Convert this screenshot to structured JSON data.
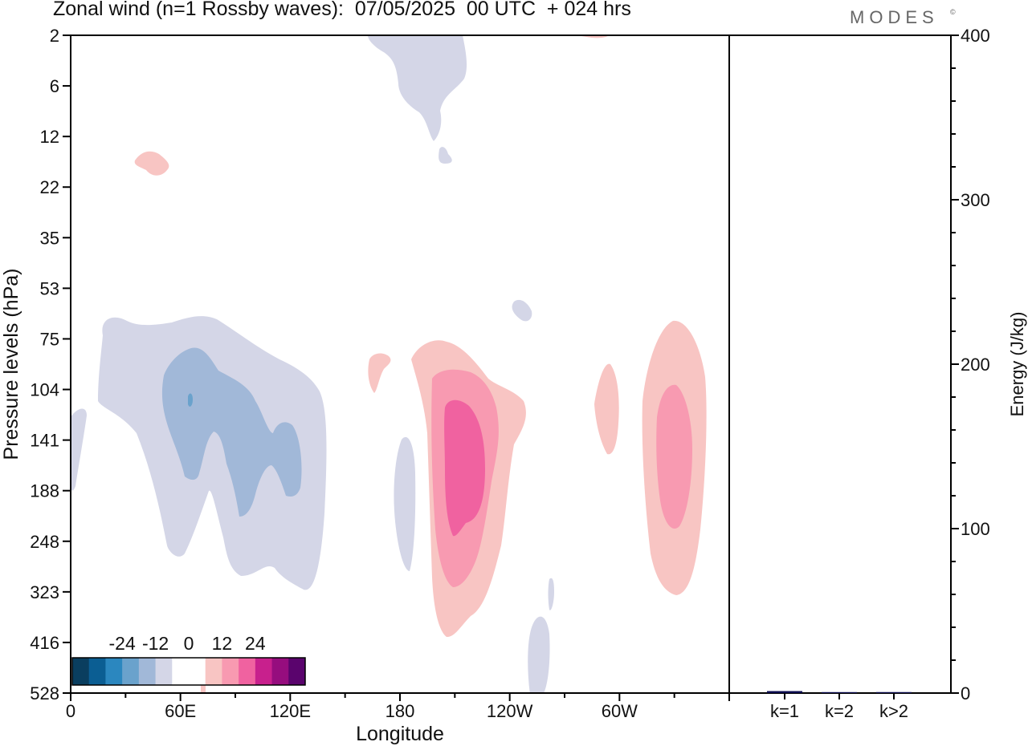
{
  "title": "Zonal wind (n=1 Rossby waves):  07/05/2025  00 UTC  + 024 hrs",
  "brand": "MODES",
  "brand_mark": "©",
  "chart_data": [
    {
      "type": "heatmap",
      "title": "Zonal wind (n=1 Rossby waves):  07/05/2025  00 UTC  + 024 hrs",
      "xlabel": "Longitude",
      "ylabel": "Pressure levels (hPa)",
      "x_ticks": [
        "0",
        "60E",
        "120E",
        "180",
        "120W",
        "60W"
      ],
      "x_tick_values": [
        0,
        60,
        120,
        180,
        240,
        300
      ],
      "xlim": [
        0,
        360
      ],
      "y_ticks": [
        2,
        6,
        12,
        22,
        35,
        53,
        75,
        104,
        141,
        188,
        248,
        323,
        416,
        528
      ],
      "y_scale": "level-index",
      "colorbar": {
        "tick_labels": [
          "-24",
          "-12",
          "0",
          "12",
          "24"
        ],
        "tick_values": [
          -24,
          -12,
          0,
          12,
          24
        ],
        "colors": [
          "#0a3e5f",
          "#0b5e93",
          "#2b87bf",
          "#6aa2cc",
          "#a1b8d8",
          "#d4d6e7",
          "#ffffff",
          "#ffffff",
          "#f8c5c3",
          "#f89ab1",
          "#f062a0",
          "#c8208d",
          "#960d7e",
          "#5a046d"
        ]
      },
      "regions": [
        {
          "value": -6,
          "color": "#d4d6e7",
          "lon": [
            10,
            125
          ],
          "p": [
            75,
            323
          ],
          "note": "negative anomaly lobe 0–120E"
        },
        {
          "value": -12,
          "color": "#a1b8d8",
          "lon": [
            40,
            105
          ],
          "p": [
            90,
            230
          ],
          "note": "core near 60–100E"
        },
        {
          "value": -18,
          "color": "#6aa2cc",
          "lon": [
            64,
            66
          ],
          "p": [
            104,
            110
          ]
        },
        {
          "value": -6,
          "color": "#d4d6e7",
          "lon": [
            0,
            8
          ],
          "p": [
            120,
            188
          ]
        },
        {
          "value": -6,
          "color": "#d4d6e7",
          "lon": [
            163,
            178
          ],
          "p": [
            2,
            14
          ]
        },
        {
          "value": -6,
          "color": "#d4d6e7",
          "lon": [
            178,
            182
          ],
          "p": [
            140,
            280
          ]
        },
        {
          "value": -6,
          "color": "#d4d6e7",
          "lon": [
            241,
            247
          ],
          "p": [
            55,
            65
          ]
        },
        {
          "value": -6,
          "color": "#d4d6e7",
          "lon": [
            250,
            265
          ],
          "p": [
            380,
            528
          ]
        },
        {
          "value": 6,
          "color": "#f8c5c3",
          "lon": [
            36,
            46
          ],
          "p": [
            16,
            20
          ]
        },
        {
          "value": 6,
          "color": "#f8c5c3",
          "lon": [
            163,
            167
          ],
          "p": [
            85,
            100
          ]
        },
        {
          "value": 6,
          "color": "#f8c5c3",
          "lon": [
            185,
            240
          ],
          "p": [
            75,
            416
          ]
        },
        {
          "value": 12,
          "color": "#f89ab1",
          "lon": [
            195,
            230
          ],
          "p": [
            100,
            323
          ]
        },
        {
          "value": 18,
          "color": "#f062a0",
          "lon": [
            205,
            225
          ],
          "p": [
            115,
            248
          ]
        },
        {
          "value": 6,
          "color": "#f8c5c3",
          "lon": [
            283,
            293
          ],
          "p": [
            90,
            140
          ]
        },
        {
          "value": 6,
          "color": "#f8c5c3",
          "lon": [
            313,
            348
          ],
          "p": [
            70,
            323
          ]
        },
        {
          "value": 12,
          "color": "#f89ab1",
          "lon": [
            320,
            343
          ],
          "p": [
            104,
            248
          ]
        }
      ]
    },
    {
      "type": "bar",
      "categories": [
        "k=1",
        "k=2",
        "k>2"
      ],
      "values": [
        1.2,
        0.2,
        0.6
      ],
      "ylabel": "Energy (J/kg)",
      "ylim": [
        0,
        400
      ],
      "y_ticks": [
        0,
        100,
        200,
        300,
        400
      ],
      "bar_color": "#0d0d4f"
    }
  ]
}
